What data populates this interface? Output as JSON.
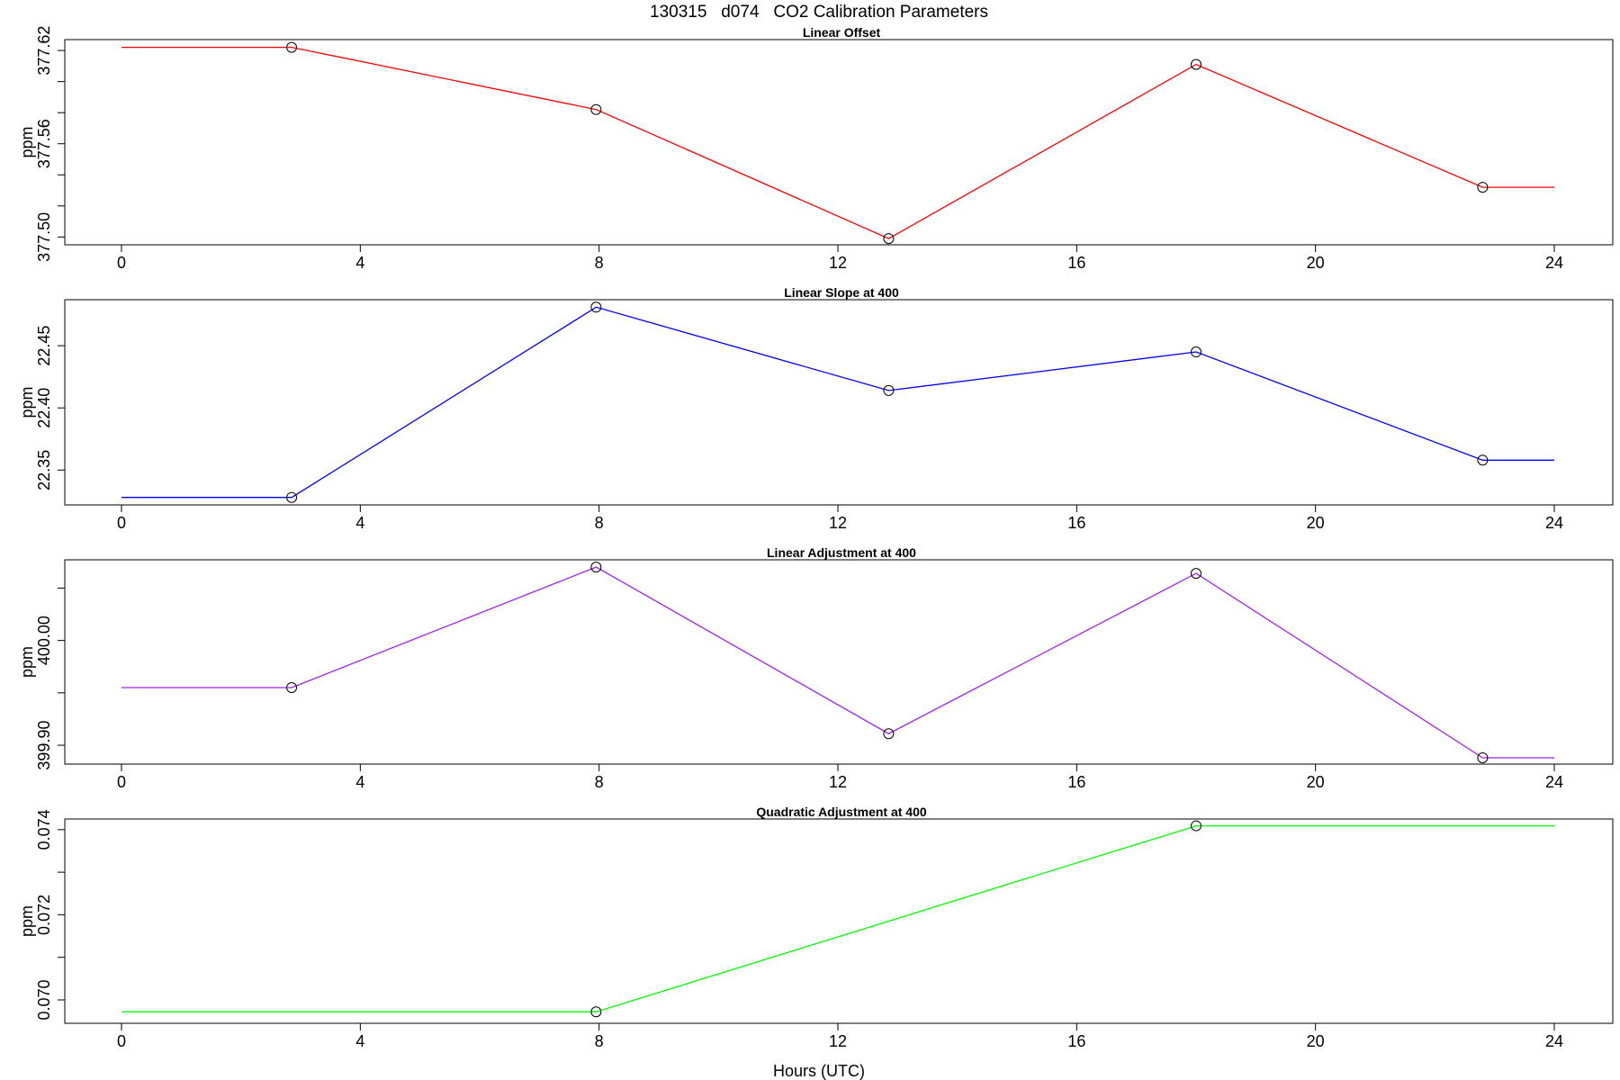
{
  "figure": {
    "title": "130315   d074   CO2 Calibration Parameters",
    "xlabel": "Hours (UTC)"
  },
  "colors": {
    "linear_offset": "#ff0000",
    "linear_slope": "#0000ff",
    "linear_adjustment": "#a020f0",
    "quadratic_adjustment": "#00ff00",
    "markers": "#000000"
  },
  "chart_data": [
    {
      "type": "line",
      "title": "Linear Offset",
      "xlabel": "",
      "ylabel": "ppm",
      "xlim": [
        0,
        24
      ],
      "ylim": [
        377.495,
        377.627
      ],
      "x_ticks": [
        0,
        4,
        8,
        12,
        16,
        20,
        24
      ],
      "y_ticks": [
        377.5,
        377.52,
        377.54,
        377.56,
        377.58,
        377.6,
        377.62
      ],
      "y_tick_labels": [
        "377.50",
        "",
        "",
        "377.56",
        "",
        "",
        "377.62"
      ],
      "grid": false,
      "markers": {
        "x": [
          2.85,
          7.95,
          12.85,
          18.0,
          22.8
        ],
        "y": [
          377.622,
          377.582,
          377.499,
          377.611,
          377.532
        ]
      },
      "series": [
        {
          "x": [
            0,
            2.85,
            7.95,
            12.85,
            18.0,
            22.8,
            24
          ],
          "y": [
            377.622,
            377.622,
            377.582,
            377.499,
            377.611,
            377.532,
            377.532
          ],
          "color": "#ff0000"
        }
      ]
    },
    {
      "type": "line",
      "title": "Linear Slope at 400",
      "xlabel": "",
      "ylabel": "ppm",
      "xlim": [
        0,
        24
      ],
      "ylim": [
        22.322,
        22.487
      ],
      "x_ticks": [
        0,
        4,
        8,
        12,
        16,
        20,
        24
      ],
      "y_ticks": [
        22.35,
        22.4,
        22.45
      ],
      "y_tick_labels": [
        "22.35",
        "22.40",
        "22.45"
      ],
      "grid": false,
      "markers": {
        "x": [
          2.85,
          7.95,
          12.85,
          18.0,
          22.8
        ],
        "y": [
          22.328,
          22.481,
          22.414,
          22.445,
          22.358
        ]
      },
      "series": [
        {
          "x": [
            0,
            2.85,
            7.95,
            12.85,
            18.0,
            22.8,
            24
          ],
          "y": [
            22.328,
            22.328,
            22.481,
            22.414,
            22.445,
            22.358,
            22.358
          ],
          "color": "#0000ff"
        }
      ]
    },
    {
      "type": "line",
      "title": "Linear Adjustment at 400",
      "xlabel": "",
      "ylabel": "ppm",
      "xlim": [
        0,
        24
      ],
      "ylim": [
        399.882,
        400.077
      ],
      "x_ticks": [
        0,
        4,
        8,
        12,
        16,
        20,
        24
      ],
      "y_ticks": [
        399.9,
        399.95,
        400.0,
        400.05
      ],
      "y_tick_labels": [
        "399.90",
        "",
        "400.00",
        ""
      ],
      "grid": false,
      "markers": {
        "x": [
          2.85,
          7.95,
          12.85,
          18.0,
          22.8
        ],
        "y": [
          399.955,
          400.07,
          399.911,
          400.064,
          399.888
        ]
      },
      "series": [
        {
          "x": [
            0,
            2.85,
            7.95,
            12.85,
            18.0,
            22.8,
            24
          ],
          "y": [
            399.955,
            399.955,
            400.07,
            399.911,
            400.064,
            399.888,
            399.888
          ],
          "color": "#a020f0"
        }
      ]
    },
    {
      "type": "line",
      "title": "Quadratic Adjustment at 400",
      "xlabel": "Hours (UTC)",
      "ylabel": "ppm",
      "xlim": [
        0,
        24
      ],
      "ylim": [
        0.06945,
        0.07425
      ],
      "x_ticks": [
        0,
        4,
        8,
        12,
        16,
        20,
        24
      ],
      "y_ticks": [
        0.07,
        0.071,
        0.072,
        0.073,
        0.074
      ],
      "y_tick_labels": [
        "0.070",
        "",
        "0.072",
        "",
        "0.074"
      ],
      "grid": false,
      "markers": {
        "x": [
          7.95,
          18.0
        ],
        "y": [
          0.06972,
          0.07409
        ]
      },
      "series": [
        {
          "x": [
            0,
            7.95,
            18.0,
            24
          ],
          "y": [
            0.06972,
            0.06972,
            0.07409,
            0.07409
          ],
          "color": "#00ff00"
        }
      ]
    }
  ]
}
